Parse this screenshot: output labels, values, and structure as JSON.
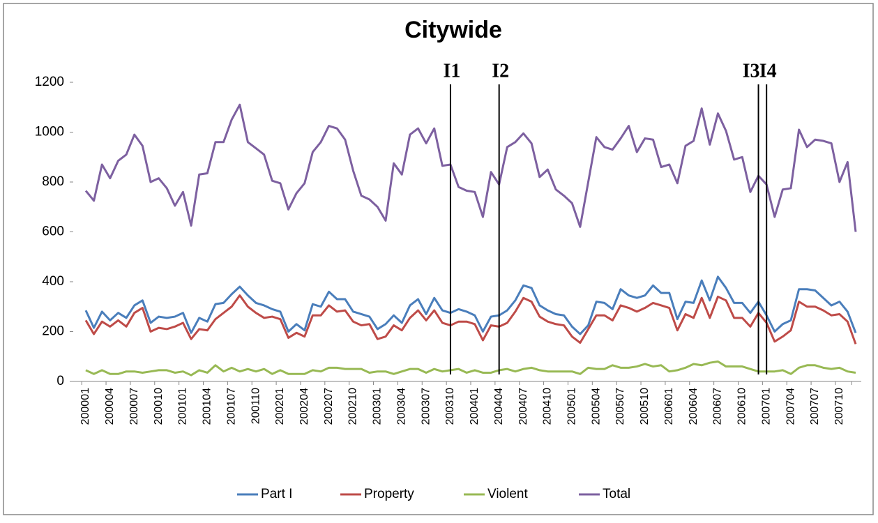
{
  "chart_data": {
    "type": "line",
    "title": "Citywide",
    "categories": [
      "200001",
      null,
      null,
      "200004",
      null,
      null,
      "200007",
      null,
      null,
      "200010",
      null,
      null,
      "200101",
      null,
      null,
      "200104",
      null,
      null,
      "200107",
      null,
      null,
      "200110",
      null,
      null,
      "200201",
      null,
      null,
      "200204",
      null,
      null,
      "200207",
      null,
      null,
      "200210",
      null,
      null,
      "200301",
      null,
      null,
      "200304",
      null,
      null,
      "200307",
      null,
      null,
      "200310",
      null,
      null,
      "200401",
      null,
      null,
      "200404",
      null,
      null,
      "200407",
      null,
      null,
      "200410",
      null,
      null,
      "200501",
      null,
      null,
      "200504",
      null,
      null,
      "200507",
      null,
      null,
      "200510",
      null,
      null,
      "200601",
      null,
      null,
      "200604",
      null,
      null,
      "200607",
      null,
      null,
      "200610",
      null,
      null,
      "200701",
      null,
      null,
      "200704",
      null,
      null,
      "200707",
      null,
      null,
      "200710",
      null,
      null
    ],
    "series": [
      {
        "name": "Part I",
        "color": "#4a7ebb",
        "values": [
          285,
          215,
          280,
          245,
          275,
          255,
          305,
          325,
          235,
          260,
          255,
          260,
          275,
          195,
          255,
          240,
          310,
          315,
          350,
          380,
          345,
          315,
          305,
          290,
          280,
          200,
          230,
          205,
          310,
          300,
          360,
          330,
          330,
          280,
          270,
          260,
          210,
          230,
          265,
          235,
          305,
          330,
          270,
          335,
          285,
          275,
          290,
          280,
          265,
          200,
          260,
          265,
          285,
          325,
          385,
          375,
          305,
          285,
          270,
          265,
          220,
          190,
          225,
          320,
          315,
          290,
          370,
          345,
          335,
          345,
          385,
          355,
          355,
          250,
          320,
          315,
          405,
          325,
          420,
          375,
          315,
          315,
          275,
          320,
          265,
          200,
          230,
          245,
          370,
          370,
          365,
          335,
          305,
          320,
          280,
          195
        ]
      },
      {
        "name": "Property",
        "color": "#be4b48",
        "values": [
          245,
          190,
          240,
          220,
          245,
          220,
          275,
          295,
          200,
          215,
          210,
          220,
          235,
          170,
          210,
          205,
          250,
          275,
          300,
          345,
          300,
          275,
          255,
          260,
          250,
          175,
          195,
          180,
          265,
          265,
          305,
          280,
          285,
          240,
          225,
          230,
          170,
          180,
          225,
          205,
          255,
          285,
          245,
          285,
          235,
          225,
          240,
          240,
          230,
          165,
          225,
          220,
          235,
          280,
          335,
          320,
          260,
          240,
          230,
          225,
          180,
          155,
          210,
          265,
          265,
          245,
          305,
          295,
          280,
          295,
          315,
          305,
          295,
          205,
          270,
          255,
          335,
          255,
          340,
          325,
          255,
          255,
          220,
          275,
          235,
          160,
          180,
          205,
          320,
          300,
          300,
          285,
          265,
          270,
          240,
          150
        ]
      },
      {
        "name": "Violent",
        "color": "#98b954",
        "values": [
          45,
          30,
          45,
          30,
          30,
          40,
          40,
          35,
          40,
          45,
          45,
          35,
          40,
          25,
          45,
          35,
          65,
          40,
          55,
          40,
          50,
          40,
          50,
          30,
          45,
          30,
          30,
          30,
          45,
          40,
          55,
          55,
          50,
          50,
          50,
          35,
          40,
          40,
          30,
          40,
          50,
          50,
          35,
          50,
          40,
          45,
          50,
          35,
          45,
          35,
          35,
          45,
          50,
          40,
          50,
          55,
          45,
          40,
          40,
          40,
          40,
          30,
          55,
          50,
          50,
          65,
          55,
          55,
          60,
          70,
          60,
          65,
          40,
          45,
          55,
          70,
          65,
          75,
          80,
          60,
          60,
          60,
          50,
          40,
          40,
          40,
          45,
          30,
          55,
          65,
          65,
          55,
          50,
          55,
          40,
          35
        ]
      },
      {
        "name": "Total",
        "color": "#7d60a0",
        "values": [
          765,
          725,
          870,
          815,
          885,
          910,
          990,
          945,
          800,
          815,
          775,
          705,
          760,
          625,
          830,
          835,
          960,
          960,
          1050,
          1110,
          960,
          935,
          910,
          805,
          795,
          690,
          755,
          795,
          920,
          960,
          1025,
          1015,
          970,
          845,
          745,
          730,
          700,
          645,
          875,
          830,
          990,
          1015,
          955,
          1015,
          865,
          870,
          780,
          765,
          760,
          660,
          840,
          790,
          940,
          960,
          995,
          955,
          820,
          850,
          770,
          745,
          715,
          620,
          800,
          980,
          940,
          930,
          975,
          1025,
          920,
          975,
          970,
          860,
          870,
          795,
          945,
          965,
          1095,
          950,
          1075,
          1005,
          890,
          900,
          760,
          825,
          790,
          660,
          770,
          775,
          1010,
          940,
          970,
          965,
          955,
          800,
          880,
          600
        ]
      }
    ],
    "ylim": [
      0,
      1200
    ],
    "yticks": [
      0,
      200,
      400,
      600,
      800,
      1000,
      1200
    ],
    "legend": "bottom",
    "annotations": [
      {
        "text": "I1",
        "at": 45
      },
      {
        "text": "I2",
        "at": 51
      },
      {
        "text": "I3",
        "at": 83
      },
      {
        "text": "I4",
        "at": 84
      }
    ]
  }
}
